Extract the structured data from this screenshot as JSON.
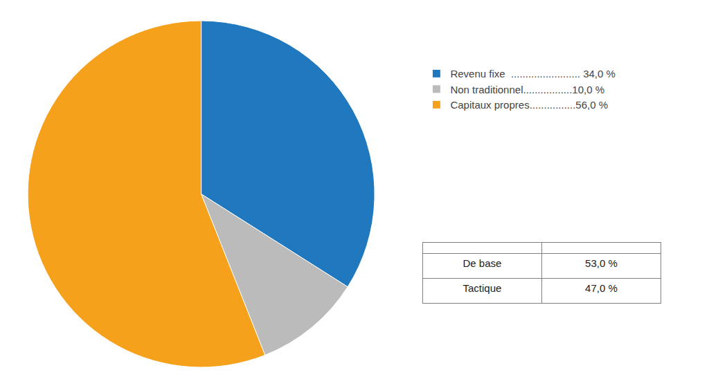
{
  "chart_data": [
    {
      "type": "pie",
      "categories": [
        "Revenu fixe  ........................ 34,0 %",
        "Non traditionnel.................10,0 %",
        "Capitaux propres................56,0 %"
      ],
      "values": [
        34.0,
        10.0,
        56.0
      ],
      "colors": [
        "#2079BF",
        "#BBBBBB",
        "#F5A11C"
      ],
      "legend": "right"
    },
    {
      "type": "table",
      "categories": [
        "De base",
        "Tactique"
      ],
      "values": [
        53.0,
        47.0
      ],
      "value_labels": [
        "53,0 %",
        "47,0 %"
      ]
    }
  ]
}
